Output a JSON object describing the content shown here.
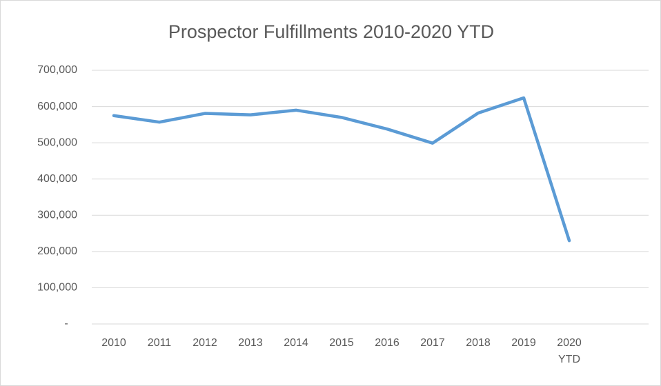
{
  "chart_data": {
    "type": "line",
    "title": "Prospector Fulfillments 2010-2020 YTD",
    "categories": [
      "2010",
      "2011",
      "2012",
      "2013",
      "2014",
      "2015",
      "2016",
      "2017",
      "2018",
      "2019",
      "2020 YTD"
    ],
    "series": [
      {
        "name": "Fulfillments",
        "color": "#5b9bd5",
        "values": [
          575000,
          557000,
          581000,
          577000,
          590000,
          570000,
          538000,
          499000,
          582000,
          624000,
          230000
        ]
      }
    ],
    "ylim": [
      0,
      700000
    ],
    "yticks": [
      {
        "value": 0,
        "label": "-"
      },
      {
        "value": 100000,
        "label": "100,000"
      },
      {
        "value": 200000,
        "label": "200,000"
      },
      {
        "value": 300000,
        "label": "300,000"
      },
      {
        "value": 400000,
        "label": "400,000"
      },
      {
        "value": 500000,
        "label": "500,000"
      },
      {
        "value": 600000,
        "label": "600,000"
      },
      {
        "value": 700000,
        "label": "700,000"
      }
    ],
    "grid": true
  }
}
